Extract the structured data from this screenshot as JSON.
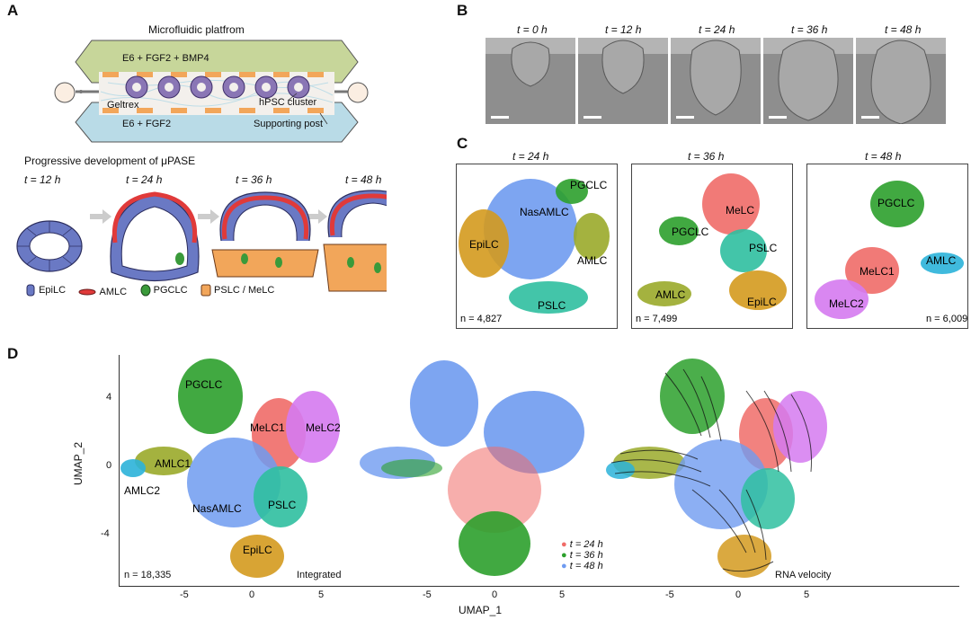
{
  "panels": {
    "A": "A",
    "B": "B",
    "C": "C",
    "D": "D"
  },
  "panelA": {
    "title": "Microfluidic platfrom",
    "top_channel": "E6 + FGF2 + BMP4",
    "bottom_channel": "E6 + FGF2",
    "geltrex": "Geltrex",
    "cluster": "hPSC cluster",
    "post": "Supporting post",
    "progress_title": "Progressive development of μPASE",
    "times": [
      "t = 12 h",
      "t = 24 h",
      "t = 36 h",
      "t = 48 h"
    ],
    "legend": [
      "EpiLC",
      "AMLC",
      "PGCLC",
      "PSLC / MeLC"
    ]
  },
  "panelB": {
    "times": [
      "t = 0 h",
      "t = 12 h",
      "t = 24 h",
      "t = 36 h",
      "t = 48 h"
    ]
  },
  "panelC": {
    "plots": [
      {
        "time": "t = 24 h",
        "n": "n = 4,827",
        "labels": [
          "PGCLC",
          "NasAMLC",
          "EpiLC",
          "AMLC",
          "PSLC"
        ]
      },
      {
        "time": "t = 36 h",
        "n": "n = 7,499",
        "labels": [
          "MeLC",
          "PGCLC",
          "PSLC",
          "AMLC",
          "EpiLC"
        ]
      },
      {
        "time": "t = 48 h",
        "n": "n = 6,009",
        "labels": [
          "PGCLC",
          "MeLC1",
          "AMLC",
          "MeLC2"
        ]
      }
    ]
  },
  "panelD": {
    "ylabel": "UMAP_2",
    "xlabel": "UMAP_1",
    "yticks": [
      "4",
      "0",
      "-4"
    ],
    "xticks": [
      "-5",
      "0",
      "5"
    ],
    "n": "n = 18,335",
    "plot1_caption": "Integrated",
    "plot3_caption": "RNA velocity",
    "cluster_labels": [
      "PGCLC",
      "MeLC1",
      "MeLC2",
      "AMLC1",
      "AMLC2",
      "NasAMLC",
      "PSLC",
      "EpiLC"
    ],
    "time_legend": [
      "t = 24 h",
      "t = 36 h",
      "t = 48 h"
    ]
  },
  "colors": {
    "PGCLC": "#2ca02c",
    "MeLC1": "#f06c68",
    "MeLC2": "#d57af0",
    "AMLC1": "#9aaa2a",
    "AMLC2": "#2bb3d9",
    "NasAMLC": "#6f9bf0",
    "PSLC": "#2fbfa0",
    "EpiLC": "#d49a1e",
    "t24": "#f06c68",
    "t36": "#2ca02c",
    "t48": "#6f9bf0"
  }
}
